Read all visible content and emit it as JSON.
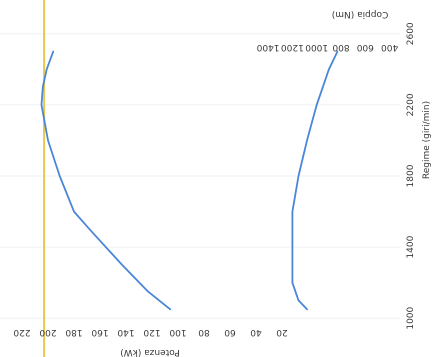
{
  "chart_data": {
    "type": "line",
    "orientation": "rotated-90-clockwise",
    "x": {
      "label": "Regime (giri/min)",
      "ticks": [
        1000,
        1400,
        1800,
        2200,
        2600
      ],
      "range": [
        900,
        2700
      ]
    },
    "y_power": {
      "label": "Potenza (kW)",
      "ticks": [
        20,
        40,
        60,
        80,
        100,
        120,
        140,
        160,
        180,
        200,
        220
      ],
      "range": [
        20,
        230
      ]
    },
    "y_torque": {
      "label": "Coppia (Nm)",
      "ticks": [
        400,
        600,
        800,
        1000,
        1200,
        1400
      ],
      "range": [
        300,
        1500
      ]
    },
    "reference_line": {
      "axis": "power",
      "value": 203,
      "color": "#e6c84a"
    },
    "series": [
      {
        "axis": "power",
        "color": "#4a86d8",
        "x": [
          1050,
          1150,
          1300,
          1500,
          1600,
          1800,
          2000,
          2200,
          2300,
          2400,
          2500
        ],
        "y": [
          106,
          123,
          143,
          168,
          180,
          191,
          200,
          205,
          204,
          201,
          196
        ]
      },
      {
        "axis": "torque",
        "color": "#4a86d8",
        "x": [
          1050,
          1100,
          1200,
          1600,
          1800,
          2000,
          2200,
          2400,
          2500
        ],
        "y": [
          1080,
          1150,
          1200,
          1200,
          1150,
          1080,
          1000,
          900,
          830
        ]
      }
    ]
  }
}
